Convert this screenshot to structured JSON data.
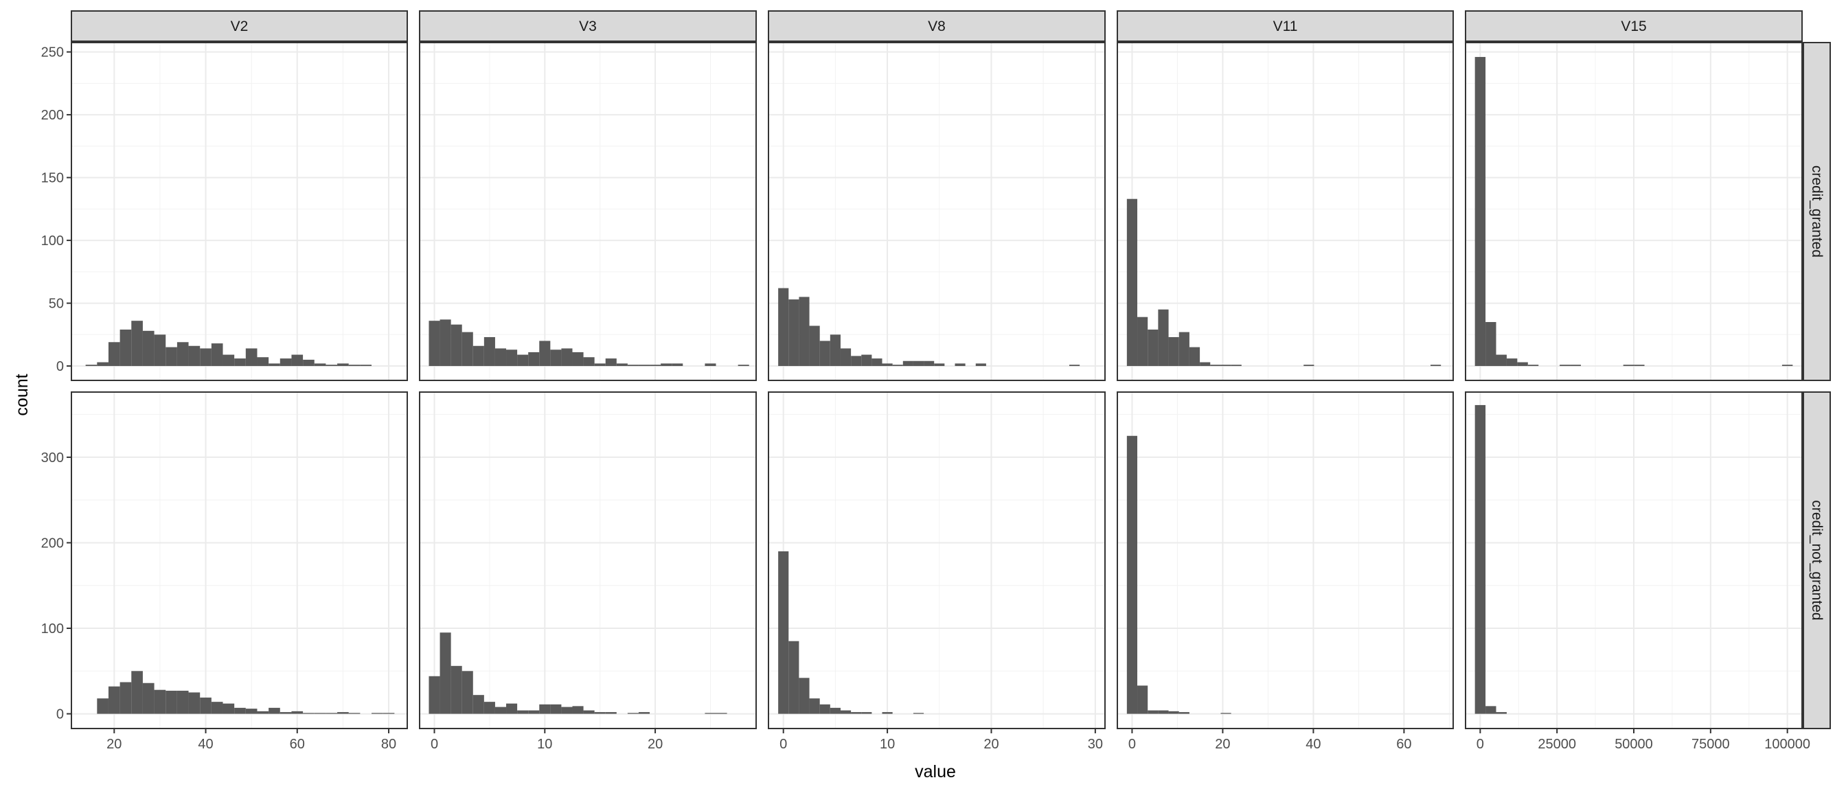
{
  "chart_data": {
    "type": "bar",
    "xlabel": "value",
    "ylabel": "count",
    "grid": true,
    "legend": "none",
    "bar_color": "#595959",
    "columns": [
      {
        "label": "V2",
        "xlim": [
          10.5,
          84.2
        ],
        "xticks": [
          20,
          40,
          60,
          80
        ],
        "binwidth": 2.5,
        "bins": {
          "credit_granted": [
            [
              15,
              1
            ],
            [
              17.5,
              3
            ],
            [
              20,
              19
            ],
            [
              22.5,
              29
            ],
            [
              25,
              36
            ],
            [
              27.5,
              28
            ],
            [
              30,
              25
            ],
            [
              32.5,
              15
            ],
            [
              35,
              19
            ],
            [
              37.5,
              16
            ],
            [
              40,
              14
            ],
            [
              42.5,
              18
            ],
            [
              45,
              9
            ],
            [
              47.5,
              6
            ],
            [
              50,
              14
            ],
            [
              52.5,
              7
            ],
            [
              55,
              2
            ],
            [
              57.5,
              6
            ],
            [
              60,
              9
            ],
            [
              62.5,
              5
            ],
            [
              65,
              2
            ],
            [
              67.5,
              1
            ],
            [
              70,
              2
            ],
            [
              72.5,
              1
            ],
            [
              75,
              1
            ]
          ],
          "credit_not_granted": [
            [
              17.5,
              18
            ],
            [
              20,
              32
            ],
            [
              22.5,
              37
            ],
            [
              25,
              50
            ],
            [
              27.5,
              36
            ],
            [
              30,
              28
            ],
            [
              32.5,
              27
            ],
            [
              35,
              27
            ],
            [
              37.5,
              25
            ],
            [
              40,
              19
            ],
            [
              42.5,
              14
            ],
            [
              45,
              12
            ],
            [
              47.5,
              7
            ],
            [
              50,
              6
            ],
            [
              52.5,
              3
            ],
            [
              55,
              7
            ],
            [
              57.5,
              2
            ],
            [
              60,
              3
            ],
            [
              62.5,
              1
            ],
            [
              65,
              1
            ],
            [
              67.5,
              1
            ],
            [
              70,
              2
            ],
            [
              72.5,
              1
            ],
            [
              77.5,
              1
            ],
            [
              80,
              1
            ]
          ]
        }
      },
      {
        "label": "V3",
        "xlim": [
          -1.4,
          29.2
        ],
        "xticks": [
          0,
          10,
          20
        ],
        "binwidth": 1,
        "bins": {
          "credit_granted": [
            [
              0,
              36
            ],
            [
              1,
              37
            ],
            [
              2,
              33
            ],
            [
              3,
              27
            ],
            [
              4,
              16
            ],
            [
              5,
              23
            ],
            [
              6,
              14
            ],
            [
              7,
              13
            ],
            [
              8,
              9
            ],
            [
              9,
              11
            ],
            [
              10,
              20
            ],
            [
              11,
              13
            ],
            [
              12,
              14
            ],
            [
              13,
              11
            ],
            [
              14,
              7
            ],
            [
              15,
              2
            ],
            [
              16,
              6
            ],
            [
              17,
              2
            ],
            [
              18,
              1
            ],
            [
              19,
              1
            ],
            [
              20,
              1
            ],
            [
              21,
              2
            ],
            [
              22,
              2
            ],
            [
              25,
              2
            ],
            [
              28,
              1
            ]
          ],
          "credit_not_granted": [
            [
              0,
              44
            ],
            [
              1,
              95
            ],
            [
              2,
              56
            ],
            [
              3,
              50
            ],
            [
              4,
              22
            ],
            [
              5,
              14
            ],
            [
              6,
              8
            ],
            [
              7,
              12
            ],
            [
              8,
              4
            ],
            [
              9,
              4
            ],
            [
              10,
              11
            ],
            [
              11,
              11
            ],
            [
              12,
              8
            ],
            [
              13,
              9
            ],
            [
              14,
              4
            ],
            [
              15,
              2
            ],
            [
              16,
              2
            ],
            [
              18,
              1
            ],
            [
              19,
              2
            ],
            [
              25,
              1
            ],
            [
              26,
              1
            ]
          ]
        }
      },
      {
        "label": "V8",
        "xlim": [
          -1.5,
          31.0
        ],
        "xticks": [
          0,
          10,
          20,
          30
        ],
        "binwidth": 1,
        "bins": {
          "credit_granted": [
            [
              0,
              62
            ],
            [
              1,
              53
            ],
            [
              2,
              55
            ],
            [
              3,
              32
            ],
            [
              4,
              20
            ],
            [
              5,
              25
            ],
            [
              6,
              14
            ],
            [
              7,
              8
            ],
            [
              8,
              9
            ],
            [
              9,
              6
            ],
            [
              10,
              2
            ],
            [
              11,
              1
            ],
            [
              12,
              4
            ],
            [
              13,
              4
            ],
            [
              14,
              4
            ],
            [
              15,
              2
            ],
            [
              17,
              2
            ],
            [
              19,
              2
            ],
            [
              28,
              1
            ]
          ],
          "credit_not_granted": [
            [
              0,
              190
            ],
            [
              1,
              85
            ],
            [
              2,
              42
            ],
            [
              3,
              18
            ],
            [
              4,
              11
            ],
            [
              5,
              7
            ],
            [
              6,
              4
            ],
            [
              7,
              2
            ],
            [
              8,
              2
            ],
            [
              10,
              2
            ],
            [
              13,
              1
            ]
          ]
        }
      },
      {
        "label": "V11",
        "xlim": [
          -3.4,
          71.0
        ],
        "xticks": [
          0,
          20,
          40,
          60
        ],
        "binwidth": 2.3,
        "bins": {
          "credit_granted": [
            [
              0,
              133
            ],
            [
              2.3,
              39
            ],
            [
              4.6,
              29
            ],
            [
              6.9,
              45
            ],
            [
              9.2,
              23
            ],
            [
              11.5,
              27
            ],
            [
              13.8,
              15
            ],
            [
              16.1,
              3
            ],
            [
              18.4,
              1
            ],
            [
              20.7,
              1
            ],
            [
              23,
              1
            ],
            [
              39,
              1
            ],
            [
              67,
              1
            ]
          ],
          "credit_not_granted": [
            [
              0,
              325
            ],
            [
              2.3,
              33
            ],
            [
              4.6,
              4
            ],
            [
              6.9,
              4
            ],
            [
              9.2,
              3
            ],
            [
              11.5,
              2
            ],
            [
              20.7,
              1
            ]
          ]
        }
      },
      {
        "label": "V15",
        "xlim": [
          -5000,
          105000
        ],
        "xticks": [
          0,
          25000,
          50000,
          75000,
          100000
        ],
        "binwidth": 3450,
        "bins": {
          "credit_granted": [
            [
              0,
              246
            ],
            [
              3450,
              35
            ],
            [
              6900,
              9
            ],
            [
              10350,
              6
            ],
            [
              13800,
              3
            ],
            [
              17250,
              1
            ],
            [
              27600,
              1
            ],
            [
              31050,
              1
            ],
            [
              48300,
              1
            ],
            [
              51750,
              1
            ],
            [
              100000,
              1
            ]
          ],
          "credit_not_granted": [
            [
              0,
              361
            ],
            [
              3450,
              9
            ],
            [
              6900,
              2
            ]
          ]
        }
      }
    ],
    "rows": [
      {
        "label": "credit_granted",
        "ylim": [
          -12,
          258
        ],
        "yticks": [
          0,
          50,
          100,
          150,
          200,
          250
        ]
      },
      {
        "label": "credit_not_granted",
        "ylim": [
          -18,
          377
        ],
        "yticks": [
          0,
          100,
          200,
          300
        ]
      }
    ]
  }
}
